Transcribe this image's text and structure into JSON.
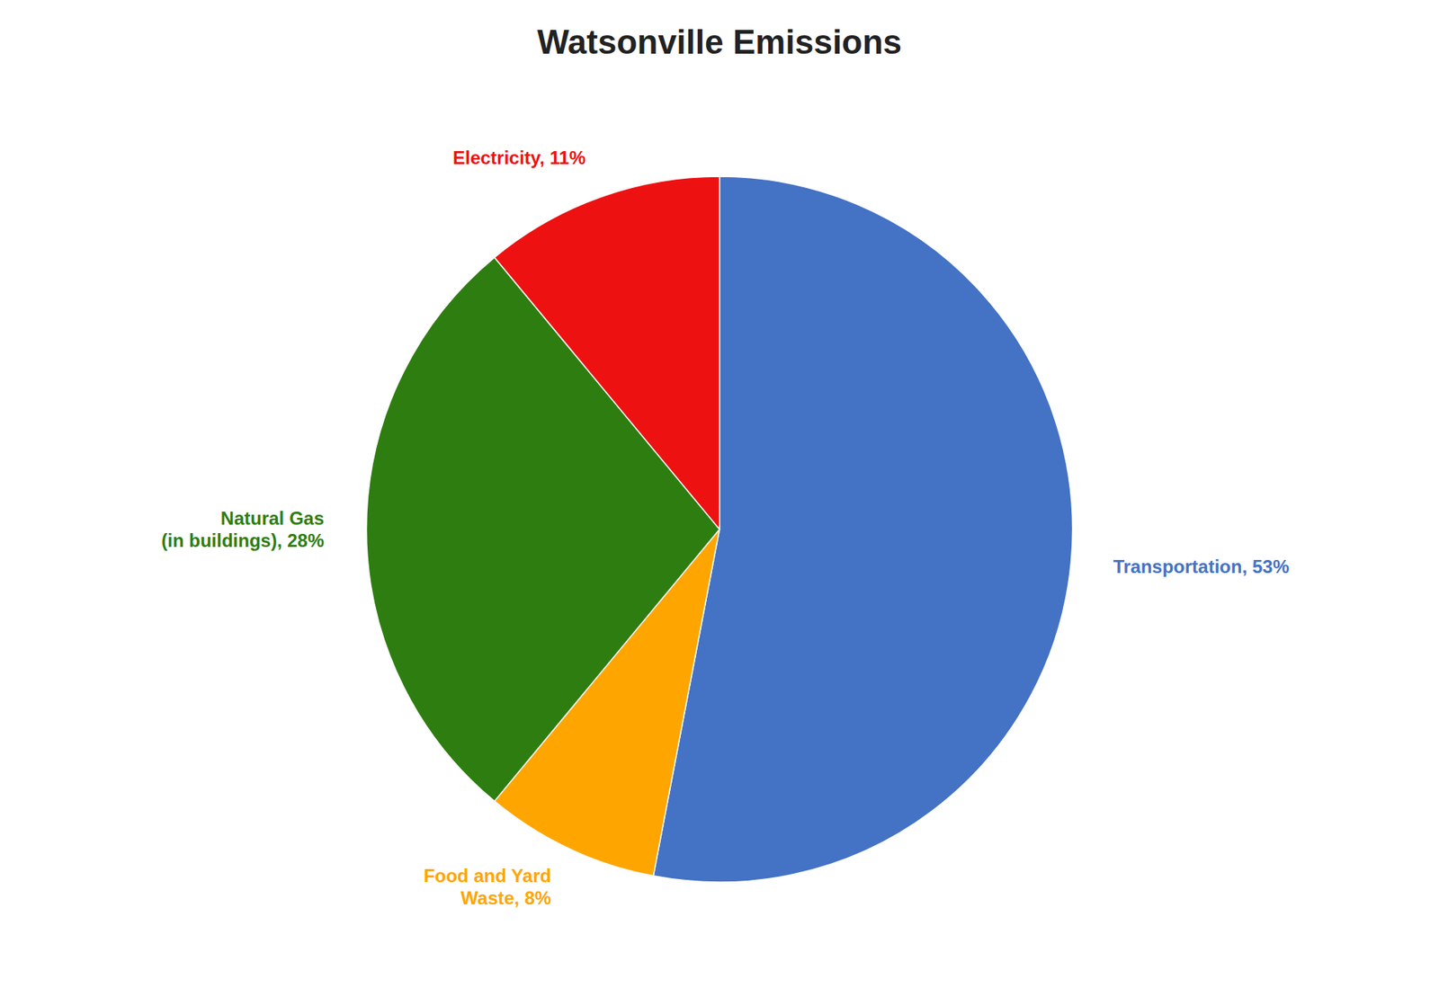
{
  "chart_data": {
    "type": "pie",
    "title": "Watsonville Emissions",
    "values": [
      53,
      8,
      28,
      11
    ],
    "value_labels": [
      "Transportation, 53%",
      "Food and Yard\nWaste, 8%",
      "Natural Gas\n(in buildings), 28%",
      "Electricity, 11%"
    ],
    "colors": [
      "#4472C4",
      "#FFA500",
      "#2E7D10",
      "#EE1111"
    ],
    "data_labels": true
  }
}
